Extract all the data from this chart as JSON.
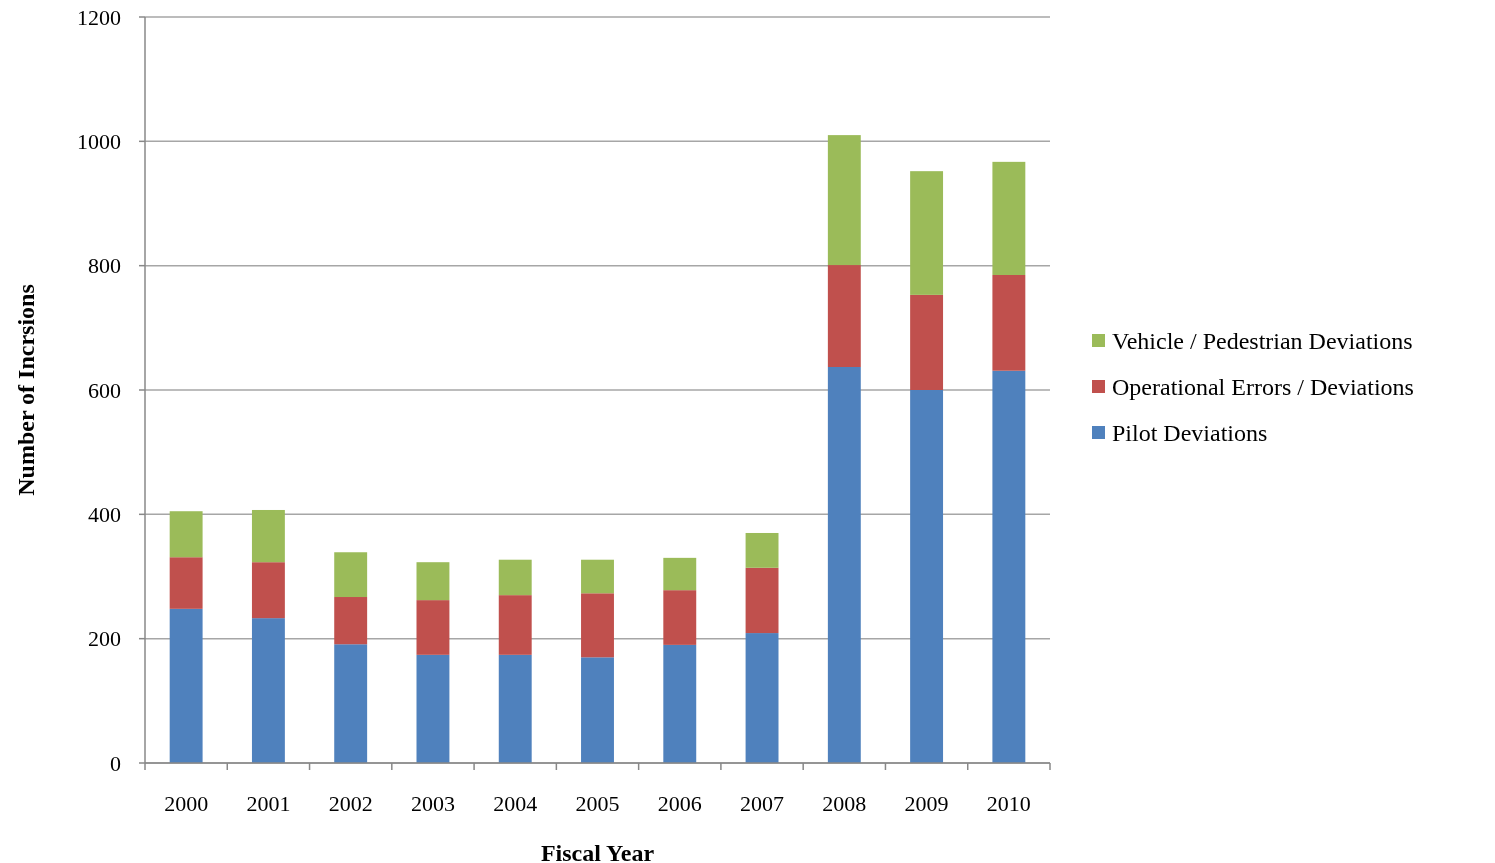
{
  "chart_data": {
    "type": "bar",
    "stacked": true,
    "xlabel": "Fiscal Year",
    "ylabel": "Number of Incrsions",
    "categories": [
      "2000",
      "2001",
      "2002",
      "2003",
      "2004",
      "2005",
      "2006",
      "2007",
      "2008",
      "2009",
      "2010"
    ],
    "series": [
      {
        "name": "Pilot Deviations",
        "color": "#4f81bd",
        "values": [
          248,
          233,
          191,
          174,
          174,
          170,
          190,
          209,
          637,
          600,
          631
        ]
      },
      {
        "name": "Operational Errors / Deviations",
        "color": "#c0504d",
        "values": [
          83,
          90,
          76,
          88,
          96,
          103,
          88,
          105,
          164,
          153,
          154
        ]
      },
      {
        "name": "Vehicle / Pedestrian Deviations",
        "color": "#9bbb59",
        "values": [
          74,
          84,
          72,
          61,
          57,
          54,
          52,
          56,
          209,
          199,
          182
        ]
      }
    ],
    "ylim": [
      0,
      1200
    ],
    "yticks": [
      0,
      200,
      400,
      600,
      800,
      1000,
      1200
    ],
    "grid": "y",
    "legend": "right"
  }
}
